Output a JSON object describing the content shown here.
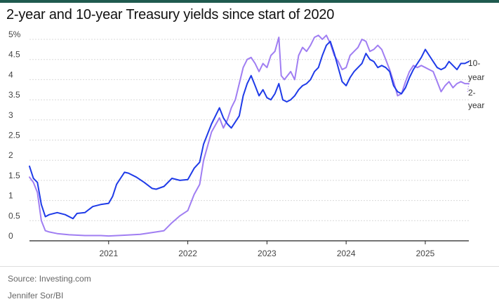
{
  "title": "2-year and 10-year Treasury yields since start of 2020",
  "source": "Source: Investing.com",
  "credit": "Jennifer Sor/BI",
  "colors": {
    "ten_year": "#1f3be8",
    "two_year": "#a07ef2",
    "grid": "#d9d9d9",
    "axis": "#222222",
    "text": "#444444"
  },
  "chart_data": {
    "type": "line",
    "title": "2-year and 10-year Treasury yields since start of 2020",
    "xlabel": "",
    "ylabel": "",
    "ylim": [
      0,
      5
    ],
    "xlim": [
      2020.0,
      2025.55
    ],
    "grid": true,
    "y_ticks": [
      {
        "value": 0,
        "label": "0"
      },
      {
        "value": 0.5,
        "label": "0.5"
      },
      {
        "value": 1,
        "label": "1"
      },
      {
        "value": 1.5,
        "label": "1.5"
      },
      {
        "value": 2,
        "label": "2"
      },
      {
        "value": 2.5,
        "label": "2.5"
      },
      {
        "value": 3,
        "label": "3"
      },
      {
        "value": 3.5,
        "label": "3.5"
      },
      {
        "value": 4,
        "label": "4"
      },
      {
        "value": 4.5,
        "label": "4.5"
      },
      {
        "value": 5,
        "label": "5%"
      }
    ],
    "x_ticks": [
      {
        "value": 2021,
        "label": "2021"
      },
      {
        "value": 2022,
        "label": "2022"
      },
      {
        "value": 2023,
        "label": "2023"
      },
      {
        "value": 2024,
        "label": "2024"
      },
      {
        "value": 2025,
        "label": "2025"
      }
    ],
    "series": [
      {
        "name": "10-year",
        "label_lines": [
          "10-",
          "year"
        ],
        "color": "#1f3be8",
        "x": [
          2020.0,
          2020.05,
          2020.1,
          2020.15,
          2020.2,
          2020.25,
          2020.35,
          2020.45,
          2020.55,
          2020.6,
          2020.7,
          2020.8,
          2020.9,
          2021.0,
          2021.05,
          2021.1,
          2021.15,
          2021.2,
          2021.25,
          2021.35,
          2021.45,
          2021.55,
          2021.6,
          2021.7,
          2021.8,
          2021.9,
          2022.0,
          2022.08,
          2022.15,
          2022.2,
          2022.3,
          2022.4,
          2022.45,
          2022.5,
          2022.55,
          2022.6,
          2022.65,
          2022.7,
          2022.75,
          2022.8,
          2022.85,
          2022.9,
          2022.95,
          2023.0,
          2023.05,
          2023.1,
          2023.15,
          2023.2,
          2023.25,
          2023.3,
          2023.35,
          2023.4,
          2023.45,
          2023.5,
          2023.55,
          2023.6,
          2023.65,
          2023.7,
          2023.75,
          2023.8,
          2023.85,
          2023.9,
          2023.95,
          2024.0,
          2024.05,
          2024.1,
          2024.15,
          2024.2,
          2024.25,
          2024.3,
          2024.35,
          2024.4,
          2024.45,
          2024.5,
          2024.55,
          2024.6,
          2024.65,
          2024.7,
          2024.75,
          2024.8,
          2024.85,
          2024.9,
          2024.95,
          2025.0,
          2025.05,
          2025.1,
          2025.15,
          2025.2,
          2025.25,
          2025.3,
          2025.35,
          2025.4,
          2025.45,
          2025.5,
          2025.55
        ],
        "values": [
          1.85,
          1.55,
          1.45,
          0.9,
          0.6,
          0.65,
          0.7,
          0.65,
          0.55,
          0.68,
          0.7,
          0.85,
          0.9,
          0.93,
          1.1,
          1.4,
          1.55,
          1.7,
          1.68,
          1.58,
          1.45,
          1.3,
          1.28,
          1.35,
          1.55,
          1.5,
          1.52,
          1.8,
          1.95,
          2.4,
          2.9,
          3.3,
          3.05,
          2.9,
          2.8,
          2.95,
          3.1,
          3.6,
          3.9,
          4.1,
          3.85,
          3.6,
          3.75,
          3.55,
          3.5,
          3.65,
          3.9,
          3.5,
          3.45,
          3.5,
          3.6,
          3.75,
          3.85,
          3.9,
          4.0,
          4.2,
          4.3,
          4.6,
          4.85,
          4.95,
          4.65,
          4.3,
          3.95,
          3.85,
          4.05,
          4.2,
          4.3,
          4.4,
          4.65,
          4.5,
          4.45,
          4.3,
          4.35,
          4.3,
          4.2,
          3.85,
          3.7,
          3.65,
          3.8,
          4.05,
          4.25,
          4.4,
          4.55,
          4.75,
          4.6,
          4.45,
          4.3,
          4.25,
          4.3,
          4.45,
          4.35,
          4.25,
          4.4,
          4.4,
          4.45
        ]
      },
      {
        "name": "2-year",
        "label_lines": [
          "2-",
          "year"
        ],
        "color": "#a07ef2",
        "x": [
          2020.0,
          2020.05,
          2020.1,
          2020.15,
          2020.2,
          2020.25,
          2020.35,
          2020.5,
          2020.7,
          2020.9,
          2021.0,
          2021.2,
          2021.4,
          2021.6,
          2021.7,
          2021.8,
          2021.9,
          2022.0,
          2022.08,
          2022.15,
          2022.2,
          2022.3,
          2022.4,
          2022.45,
          2022.5,
          2022.55,
          2022.6,
          2022.65,
          2022.7,
          2022.75,
          2022.8,
          2022.85,
          2022.9,
          2022.95,
          2023.0,
          2023.05,
          2023.1,
          2023.15,
          2023.18,
          2023.22,
          2023.3,
          2023.35,
          2023.4,
          2023.45,
          2023.5,
          2023.55,
          2023.6,
          2023.65,
          2023.7,
          2023.75,
          2023.8,
          2023.85,
          2023.9,
          2023.95,
          2024.0,
          2024.05,
          2024.1,
          2024.15,
          2024.2,
          2024.25,
          2024.3,
          2024.35,
          2024.4,
          2024.45,
          2024.5,
          2024.55,
          2024.6,
          2024.65,
          2024.7,
          2024.75,
          2024.8,
          2024.85,
          2024.9,
          2024.95,
          2025.0,
          2025.05,
          2025.1,
          2025.15,
          2025.2,
          2025.25,
          2025.3,
          2025.35,
          2025.4,
          2025.45,
          2025.5,
          2025.55
        ],
        "values": [
          1.58,
          1.45,
          1.2,
          0.5,
          0.25,
          0.22,
          0.18,
          0.15,
          0.13,
          0.13,
          0.12,
          0.14,
          0.16,
          0.22,
          0.25,
          0.45,
          0.62,
          0.75,
          1.15,
          1.4,
          2.0,
          2.7,
          3.05,
          2.8,
          3.0,
          3.3,
          3.5,
          3.9,
          4.3,
          4.5,
          4.55,
          4.4,
          4.2,
          4.4,
          4.3,
          4.6,
          4.7,
          5.05,
          4.1,
          4.0,
          4.2,
          4.0,
          4.6,
          4.8,
          4.7,
          4.85,
          5.05,
          5.1,
          5.0,
          5.1,
          4.9,
          4.6,
          4.45,
          4.25,
          4.3,
          4.6,
          4.7,
          4.8,
          5.0,
          4.95,
          4.7,
          4.75,
          4.85,
          4.75,
          4.5,
          4.25,
          3.95,
          3.6,
          3.65,
          3.95,
          4.2,
          4.35,
          4.3,
          4.35,
          4.3,
          4.25,
          4.2,
          3.95,
          3.7,
          3.85,
          3.95,
          3.8,
          3.9,
          3.95,
          3.9,
          3.9
        ]
      }
    ]
  }
}
